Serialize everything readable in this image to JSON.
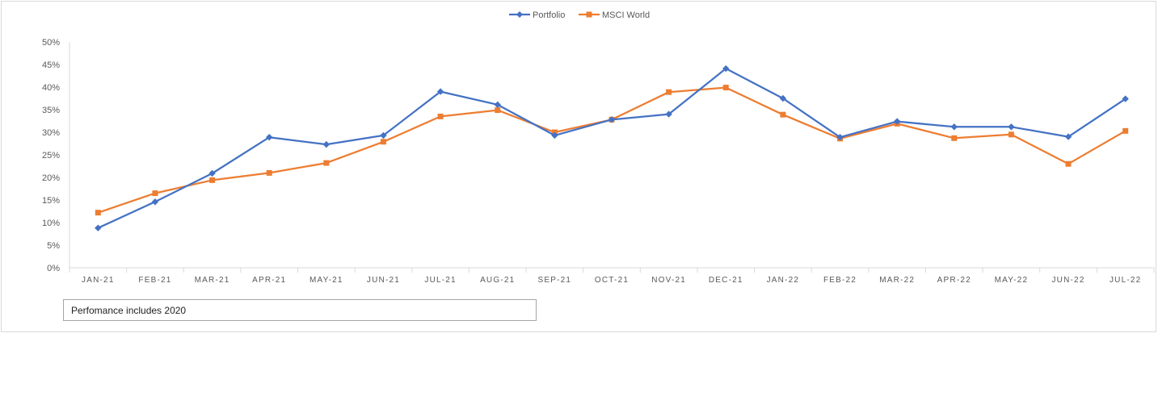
{
  "chart_data": {
    "type": "line",
    "categories": [
      "JAN-21",
      "FEB-21",
      "MAR-21",
      "APR-21",
      "MAY-21",
      "JUN-21",
      "JUL-21",
      "AUG-21",
      "SEP-21",
      "OCT-21",
      "NOV-21",
      "DEC-21",
      "JAN-22",
      "FEB-22",
      "MAR-22",
      "APR-22",
      "MAY-22",
      "JUN-22",
      "JUL-22"
    ],
    "series": [
      {
        "name": "Portfolio",
        "color": "#4472c4",
        "marker": "diamond",
        "values": [
          0.088,
          0.146,
          0.209,
          0.289,
          0.273,
          0.293,
          0.39,
          0.361,
          0.293,
          0.328,
          0.34,
          0.441,
          0.375,
          0.289,
          0.324,
          0.312,
          0.312,
          0.29,
          0.374
        ]
      },
      {
        "name": "MSCI World",
        "color": "#ed7d31",
        "marker": "square",
        "values": [
          0.122,
          0.165,
          0.194,
          0.21,
          0.232,
          0.279,
          0.335,
          0.349,
          0.3,
          0.328,
          0.389,
          0.399,
          0.339,
          0.286,
          0.319,
          0.287,
          0.295,
          0.23,
          0.303
        ]
      }
    ],
    "y_ticks": [
      "0%",
      "5%",
      "10%",
      "15%",
      "20%",
      "25%",
      "30%",
      "35%",
      "40%",
      "45%",
      "50%"
    ],
    "ylim": [
      0,
      0.5
    ],
    "grid": false,
    "legend_position": "top-center",
    "title": "",
    "xlabel": "",
    "ylabel": ""
  },
  "note": "Perfomance includes 2020"
}
